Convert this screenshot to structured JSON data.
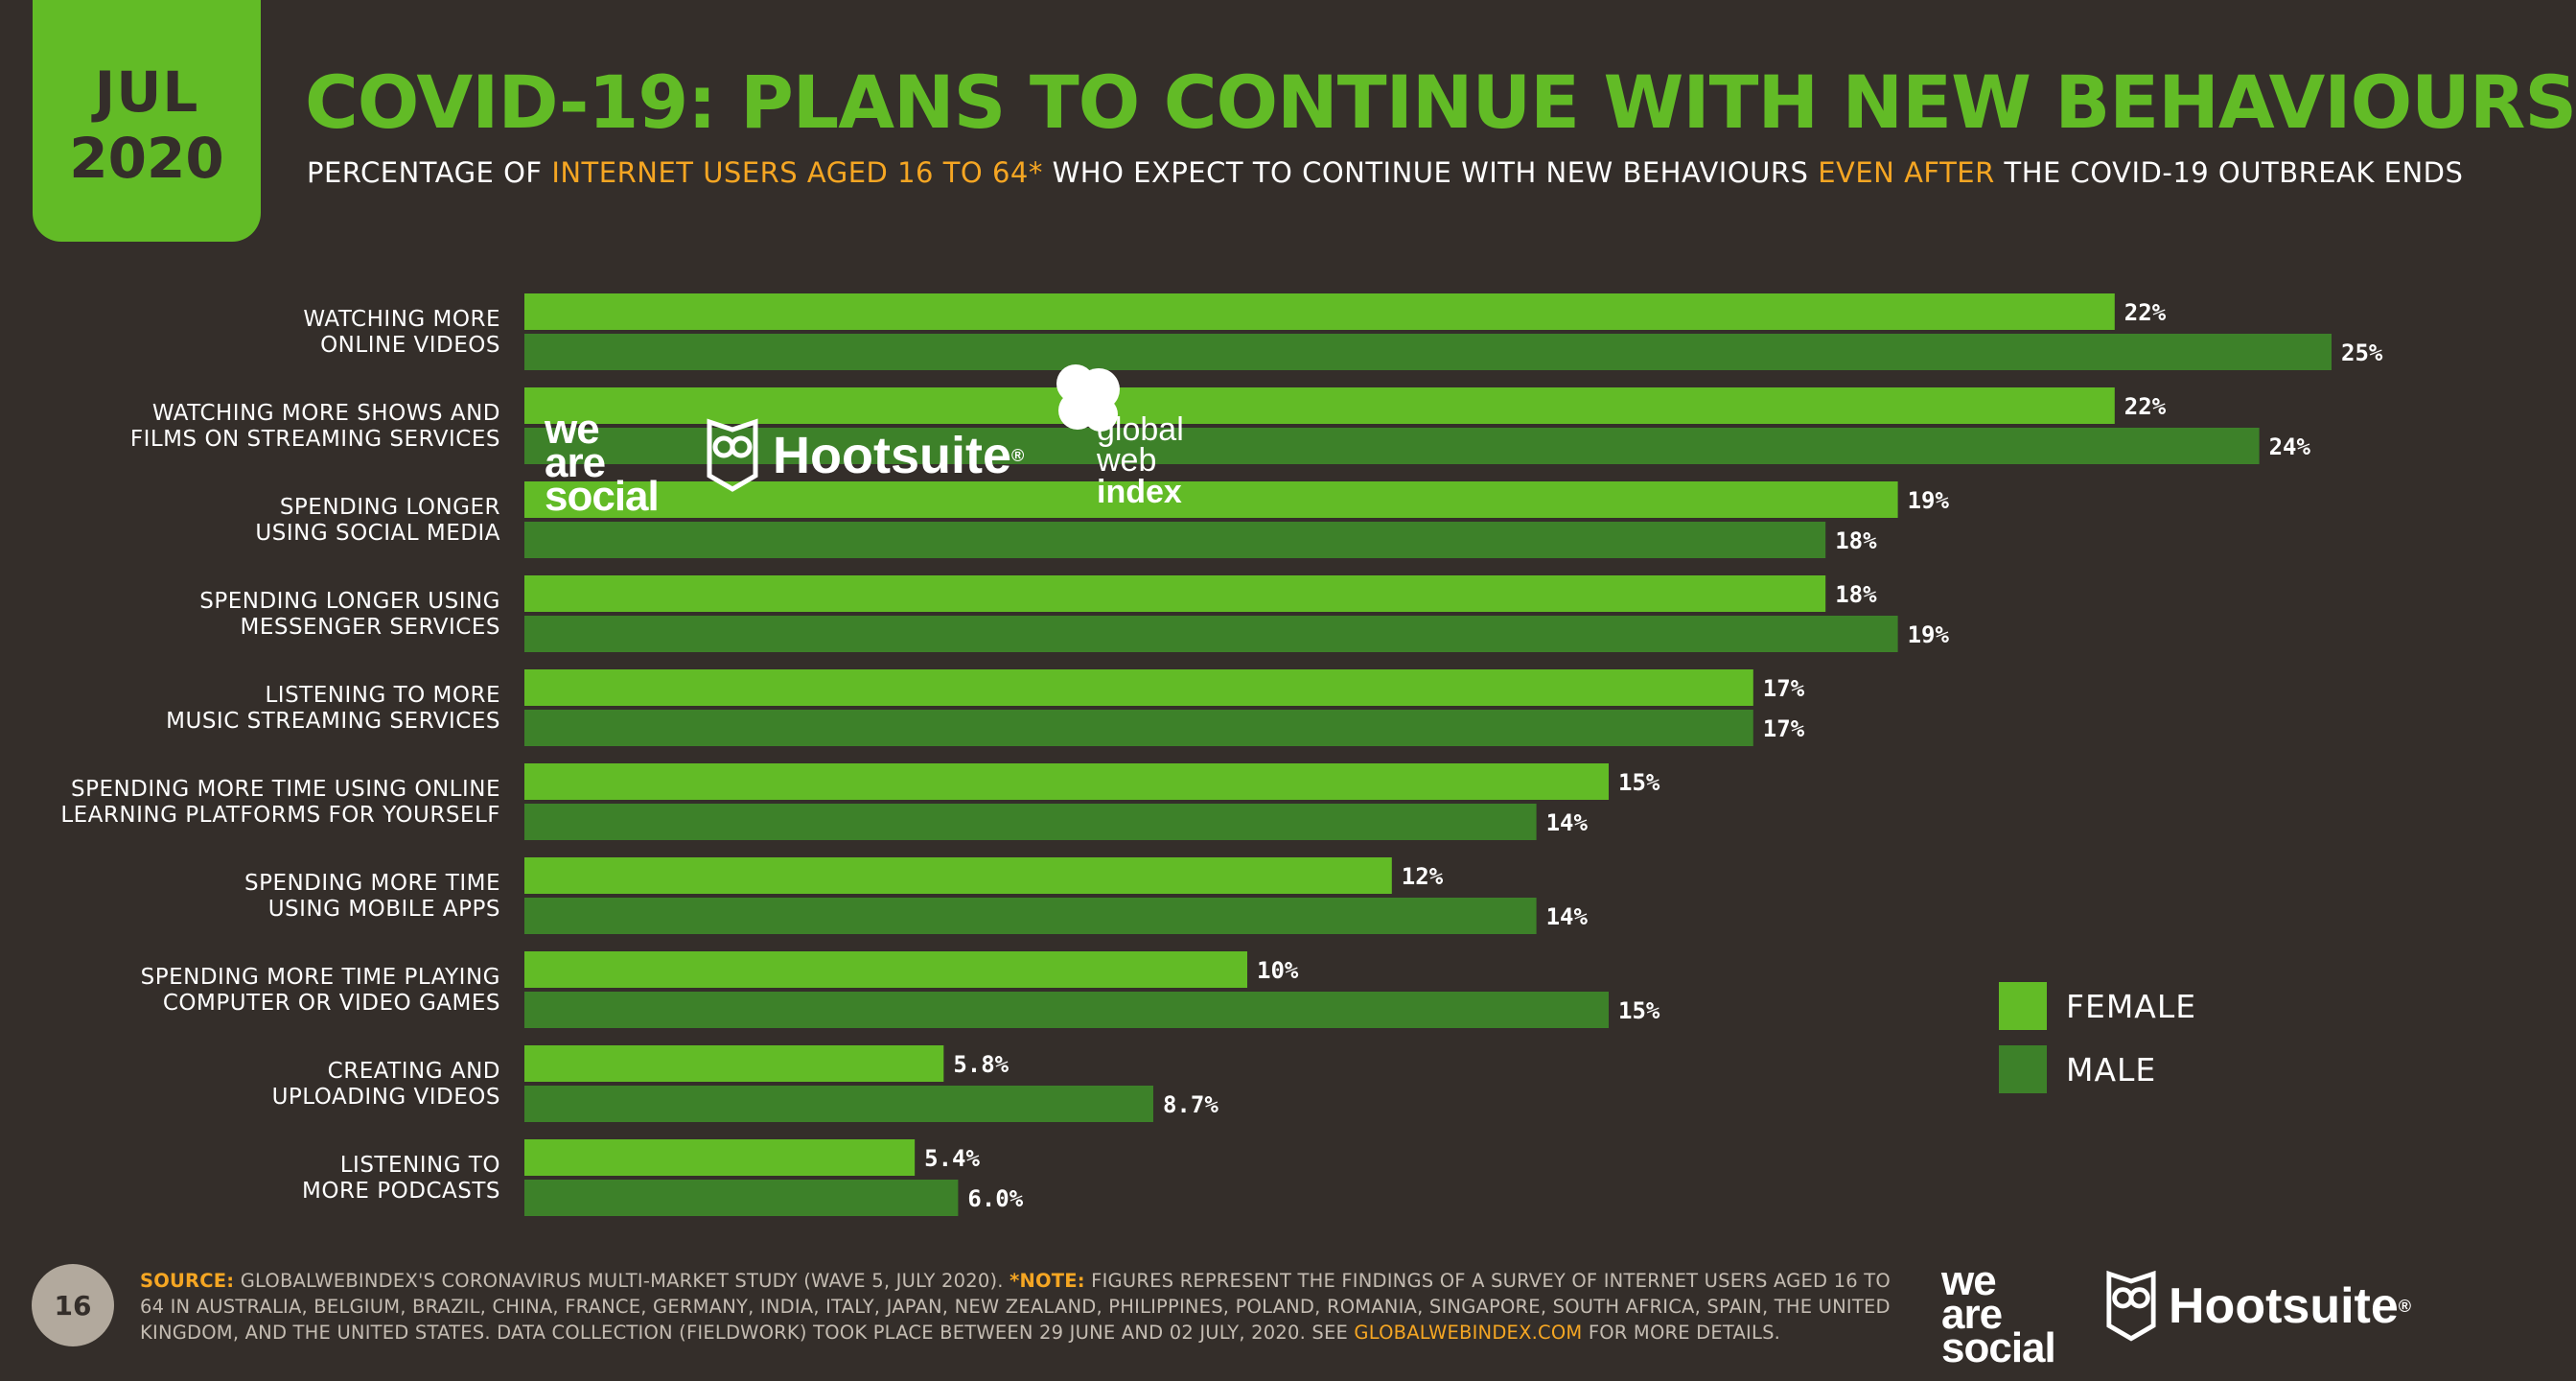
{
  "header": {
    "month": "JUL",
    "year": "2020",
    "title": "COVID-19: PLANS TO CONTINUE WITH NEW BEHAVIOURS",
    "subtitle_1": "PERCENTAGE OF ",
    "subtitle_2": "INTERNET USERS AGED 16 TO 64*",
    "subtitle_3": " WHO EXPECT TO CONTINUE WITH NEW BEHAVIOURS ",
    "subtitle_4": "EVEN AFTER",
    "subtitle_5": " THE COVID-19 OUTBREAK ENDS"
  },
  "chart_data": {
    "type": "bar",
    "orientation": "horizontal",
    "title": "COVID-19: PLANS TO CONTINUE WITH NEW BEHAVIOURS",
    "xlabel": "",
    "ylabel": "",
    "xlim": [
      0,
      25
    ],
    "categories": [
      [
        "WATCHING MORE",
        "ONLINE VIDEOS"
      ],
      [
        "WATCHING MORE SHOWS AND",
        "FILMS ON STREAMING SERVICES"
      ],
      [
        "SPENDING LONGER",
        "USING SOCIAL MEDIA"
      ],
      [
        "SPENDING LONGER USING",
        "MESSENGER SERVICES"
      ],
      [
        "LISTENING TO MORE",
        "MUSIC STREAMING SERVICES"
      ],
      [
        "SPENDING MORE TIME USING ONLINE",
        "LEARNING PLATFORMS FOR YOURSELF"
      ],
      [
        "SPENDING MORE TIME",
        "USING MOBILE APPS"
      ],
      [
        "SPENDING MORE TIME PLAYING",
        "COMPUTER OR VIDEO GAMES"
      ],
      [
        "CREATING AND",
        "UPLOADING VIDEOS"
      ],
      [
        "LISTENING TO",
        "MORE PODCASTS"
      ]
    ],
    "series": [
      {
        "name": "FEMALE",
        "color": "#62bb26",
        "values": [
          22,
          22,
          19,
          18,
          17,
          15,
          12,
          10,
          5.8,
          5.4
        ],
        "labels": [
          "22%",
          "22%",
          "19%",
          "18%",
          "17%",
          "15%",
          "12%",
          "10%",
          "5.8%",
          "5.4%"
        ]
      },
      {
        "name": "MALE",
        "color": "#3d8129",
        "values": [
          25,
          24,
          18,
          19,
          17,
          14,
          14,
          15,
          8.7,
          6.0
        ],
        "labels": [
          "25%",
          "24%",
          "18%",
          "19%",
          "17%",
          "14%",
          "14%",
          "15%",
          "8.7%",
          "6.0%"
        ]
      }
    ],
    "legend": "right"
  },
  "legend": {
    "female": "FEMALE",
    "male": "MALE",
    "female_color": "#62bb26",
    "male_color": "#3d8129"
  },
  "footer": {
    "page_number": "16",
    "source_label": "SOURCE:",
    "source_text": " GLOBALWEBINDEX'S CORONAVIRUS MULTI-MARKET STUDY (WAVE 5, JULY 2020). ",
    "note_label": "*NOTE:",
    "note_text": " FIGURES REPRESENT THE FINDINGS OF A SURVEY OF INTERNET USERS AGED 16 TO 64 IN AUSTRALIA, BELGIUM, BRAZIL, CHINA, FRANCE, GERMANY, INDIA, ITALY, JAPAN, NEW ZEALAND, PHILIPPINES, POLAND, ROMANIA, SINGAPORE, SOUTH AFRICA, SPAIN, THE UNITED KINGDOM, AND THE UNITED STATES. DATA COLLECTION (FIELDWORK) TOOK PLACE BETWEEN 29 JUNE AND 02 JULY, 2020. SEE ",
    "link_text": "GLOBALWEBINDEX.COM",
    "end_text": " FOR MORE DETAILS."
  },
  "logos": {
    "was_1": "we",
    "was_2": "are",
    "was_3": "social",
    "hootsuite": "Hootsuite",
    "registered": "®",
    "gwi_1": "global",
    "gwi_2": "web",
    "gwi_3": "index"
  },
  "colors": {
    "background": "#342e2a",
    "accent": "#62bb26",
    "highlight": "#f5a623"
  }
}
